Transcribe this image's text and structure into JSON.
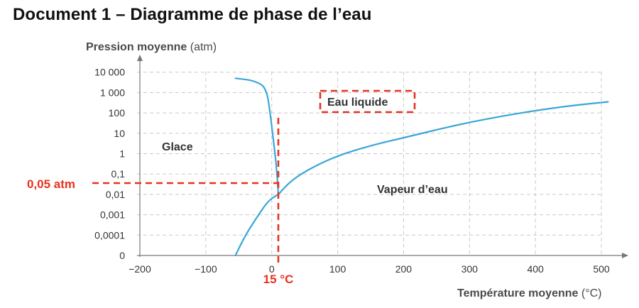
{
  "document": {
    "title": "Document 1 – Diagramme de phase de l’eau"
  },
  "chart_data": {
    "type": "line",
    "title": "",
    "ylabel_bold": "Pression moyenne",
    "ylabel_unit": "(atm)",
    "xlabel_bold": "Température moyenne",
    "xlabel_unit": "(°C)",
    "x_ticks": [
      "−200",
      "−100",
      "0",
      "100",
      "200",
      "300",
      "400",
      "500"
    ],
    "x_tick_values": [
      -200,
      -100,
      0,
      100,
      200,
      300,
      400,
      500
    ],
    "y_ticks": [
      "0",
      "0,0001",
      "0,001",
      "0,01",
      "0,1",
      "1",
      "10",
      "100",
      "1 000",
      "10 000"
    ],
    "y_tick_values": [
      0,
      0.0001,
      0.001,
      0.01,
      0.1,
      1,
      10,
      100,
      1000,
      10000
    ],
    "xlim": [
      -200,
      510
    ],
    "y_scale": "log (0 at bottom)",
    "grid": true,
    "regions": {
      "solid": "Glace",
      "liquid": "Eau liquide",
      "gas": "Vapeur d’eau"
    },
    "annotations": {
      "pressure_marker": "0,05 atm",
      "temperature_marker": "15 °C"
    },
    "series": [
      {
        "name": "",
        "curve": "solid-liquid",
        "x": [
          -55,
          -30,
          -15,
          -10,
          -5,
          5,
          8,
          10
        ],
        "y": [
          5000,
          4000,
          2500,
          1500,
          500,
          1,
          0.1,
          0.01
        ]
      },
      {
        "name": "",
        "curve": "solid-gas",
        "x": [
          -55,
          -40,
          -20,
          -5,
          10
        ],
        "y": [
          0,
          0.0001,
          0.001,
          0.005,
          0.01
        ]
      },
      {
        "name": "",
        "curve": "liquid-gas",
        "x": [
          10,
          30,
          60,
          100,
          150,
          200,
          250,
          300,
          350,
          400,
          450,
          510
        ],
        "y": [
          0.01,
          0.05,
          0.2,
          0.8,
          2.5,
          6,
          15,
          35,
          70,
          130,
          220,
          350
        ]
      }
    ],
    "colors": {
      "curve": "#3aa6d8",
      "annotation": "#e8311f",
      "grid": "#c8c8c8",
      "axis": "#777777"
    }
  }
}
